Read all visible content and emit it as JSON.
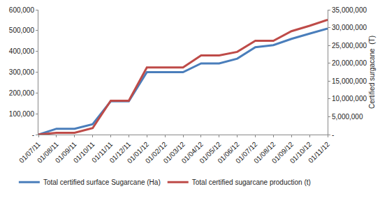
{
  "chart_data": {
    "type": "line",
    "y2_title": "Certified surgacane  (T)",
    "categories": [
      "01/07/11",
      "01/08/11",
      "01/09/11",
      "01/10/11",
      "01/11/11",
      "01/12/11",
      "01/01/12",
      "01/02/12",
      "01/03/12",
      "01/04/12",
      "01/05/12",
      "01/06/12",
      "01/07/12",
      "01/08/12",
      "01/09/12",
      "01/10/12",
      "01/11/12"
    ],
    "series": [
      {
        "name": "Total certified surface Sugarcane (Ha)",
        "color": "#4a7ebb",
        "values": [
          0,
          28000,
          28000,
          50000,
          160000,
          160000,
          300000,
          300000,
          300000,
          342000,
          342000,
          365000,
          420000,
          430000,
          460000,
          485000,
          510000
        ]
      },
      {
        "name": "Total certified sugarcane production (t)",
        "color": "#be4b48",
        "axis": "y2",
        "values": [
          0,
          500000,
          500000,
          1800000,
          9500000,
          9500000,
          18800000,
          18800000,
          18800000,
          22200000,
          22200000,
          23200000,
          26300000,
          26300000,
          29000000,
          30500000,
          32200000
        ]
      }
    ],
    "ylim": [
      0,
      600000
    ],
    "yticks": [
      {
        "value": 0,
        "label": "-"
      },
      {
        "value": 100000,
        "label": "100,000"
      },
      {
        "value": 200000,
        "label": "200,000"
      },
      {
        "value": 300000,
        "label": "300,000"
      },
      {
        "value": 400000,
        "label": "400,000"
      },
      {
        "value": 500000,
        "label": "500,000"
      },
      {
        "value": 600000,
        "label": "600,000"
      }
    ],
    "y2lim": [
      0,
      35000000
    ],
    "y2ticks": [
      {
        "value": 0,
        "label": "-"
      },
      {
        "value": 5000000,
        "label": "5,000,000"
      },
      {
        "value": 10000000,
        "label": "10,000,000"
      },
      {
        "value": 15000000,
        "label": "15,000,000"
      },
      {
        "value": 20000000,
        "label": "20,000,000"
      },
      {
        "value": 25000000,
        "label": "25,000,000"
      },
      {
        "value": 30000000,
        "label": "30,000,000"
      },
      {
        "value": 35000000,
        "label": "35,000,000"
      }
    ],
    "grid": false,
    "legend": "bottom"
  }
}
